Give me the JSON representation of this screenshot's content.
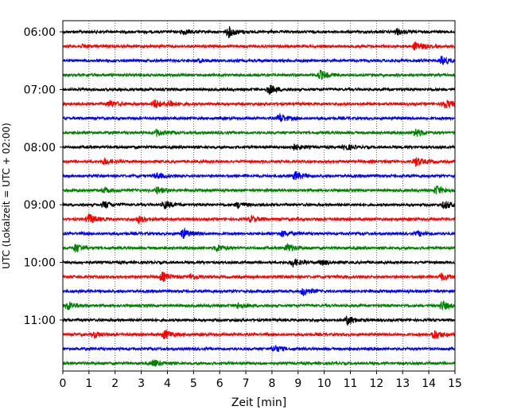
{
  "chart_data": {
    "type": "line",
    "title": "",
    "xlabel": "Zeit  [min]",
    "ylabel": "UTC (Lokalzeit = UTC + 02:00)",
    "xlim": [
      0,
      15
    ],
    "x_ticks": [
      0,
      1,
      2,
      3,
      4,
      5,
      6,
      7,
      8,
      9,
      10,
      11,
      12,
      13,
      14,
      15
    ],
    "grid": "vertical dotted lines at each minute",
    "traces_per_hour": 4,
    "minutes_per_trace": 15,
    "y_tick_labels": [
      "06:00",
      "07:00",
      "08:00",
      "09:00",
      "10:00",
      "11:00"
    ],
    "colors": [
      "#000000",
      "#ff0000",
      "#0000ff",
      "#008000"
    ],
    "series": [
      {
        "start": "06:00",
        "color": "#000000",
        "events": [
          {
            "t": 4.6,
            "a": 0.45
          },
          {
            "t": 6.35,
            "a": 0.9
          },
          {
            "t": 12.8,
            "a": 0.5
          }
        ]
      },
      {
        "start": "06:15",
        "color": "#ff0000",
        "events": [
          {
            "t": 0.8,
            "a": 0.3
          },
          {
            "t": 13.5,
            "a": 0.85
          }
        ]
      },
      {
        "start": "06:30",
        "color": "#0000ff",
        "events": [
          {
            "t": 5.2,
            "a": 0.25
          },
          {
            "t": 14.5,
            "a": 0.8
          }
        ]
      },
      {
        "start": "06:45",
        "color": "#008000",
        "events": [
          {
            "t": 9.85,
            "a": 0.8
          }
        ]
      },
      {
        "start": "07:00",
        "color": "#000000",
        "events": [
          {
            "t": 7.9,
            "a": 0.8
          }
        ]
      },
      {
        "start": "07:15",
        "color": "#ff0000",
        "events": [
          {
            "t": 1.8,
            "a": 0.6
          },
          {
            "t": 3.5,
            "a": 0.8
          },
          {
            "t": 4.1,
            "a": 0.5
          },
          {
            "t": 14.6,
            "a": 0.85
          }
        ]
      },
      {
        "start": "07:30",
        "color": "#0000ff",
        "events": [
          {
            "t": 8.3,
            "a": 0.8
          }
        ]
      },
      {
        "start": "07:45",
        "color": "#008000",
        "events": [
          {
            "t": 3.6,
            "a": 0.6
          },
          {
            "t": 13.5,
            "a": 0.7
          }
        ]
      },
      {
        "start": "08:00",
        "color": "#000000",
        "events": [
          {
            "t": 8.8,
            "a": 0.6
          },
          {
            "t": 10.8,
            "a": 0.5
          }
        ]
      },
      {
        "start": "08:15",
        "color": "#ff0000",
        "events": [
          {
            "t": 1.6,
            "a": 0.5
          },
          {
            "t": 13.5,
            "a": 0.8
          }
        ]
      },
      {
        "start": "08:30",
        "color": "#0000ff",
        "events": [
          {
            "t": 3.6,
            "a": 0.5
          },
          {
            "t": 8.9,
            "a": 0.8
          }
        ]
      },
      {
        "start": "08:45",
        "color": "#008000",
        "events": [
          {
            "t": 1.6,
            "a": 0.4
          },
          {
            "t": 3.6,
            "a": 0.6
          },
          {
            "t": 14.3,
            "a": 0.8
          }
        ]
      },
      {
        "start": "09:00",
        "color": "#000000",
        "events": [
          {
            "t": 1.6,
            "a": 0.6
          },
          {
            "t": 3.9,
            "a": 0.7
          },
          {
            "t": 6.7,
            "a": 0.5
          },
          {
            "t": 14.6,
            "a": 0.7
          }
        ]
      },
      {
        "start": "09:15",
        "color": "#ff0000",
        "events": [
          {
            "t": 1.0,
            "a": 0.9
          },
          {
            "t": 2.9,
            "a": 0.6
          },
          {
            "t": 7.2,
            "a": 0.5
          }
        ]
      },
      {
        "start": "09:30",
        "color": "#0000ff",
        "events": [
          {
            "t": 4.6,
            "a": 0.85
          },
          {
            "t": 8.4,
            "a": 0.5
          },
          {
            "t": 13.6,
            "a": 0.4
          }
        ]
      },
      {
        "start": "09:45",
        "color": "#008000",
        "events": [
          {
            "t": 0.5,
            "a": 0.8
          },
          {
            "t": 5.9,
            "a": 0.6
          },
          {
            "t": 8.6,
            "a": 0.7
          }
        ]
      },
      {
        "start": "10:00",
        "color": "#000000",
        "events": [
          {
            "t": 8.8,
            "a": 0.7
          },
          {
            "t": 9.9,
            "a": 0.45
          }
        ]
      },
      {
        "start": "10:15",
        "color": "#ff0000",
        "events": [
          {
            "t": 3.8,
            "a": 0.8
          },
          {
            "t": 4.9,
            "a": 0.5
          },
          {
            "t": 14.5,
            "a": 0.6
          }
        ]
      },
      {
        "start": "10:30",
        "color": "#0000ff",
        "events": [
          {
            "t": 9.2,
            "a": 0.7
          }
        ]
      },
      {
        "start": "10:45",
        "color": "#008000",
        "events": [
          {
            "t": 0.2,
            "a": 0.8
          },
          {
            "t": 6.7,
            "a": 0.5
          },
          {
            "t": 14.5,
            "a": 0.8
          }
        ]
      },
      {
        "start": "11:00",
        "color": "#000000",
        "events": [
          {
            "t": 10.9,
            "a": 0.8
          }
        ]
      },
      {
        "start": "11:15",
        "color": "#ff0000",
        "events": [
          {
            "t": 1.2,
            "a": 0.5
          },
          {
            "t": 3.9,
            "a": 0.85
          },
          {
            "t": 14.2,
            "a": 0.85
          }
        ]
      },
      {
        "start": "11:30",
        "color": "#0000ff",
        "events": [
          {
            "t": 8.1,
            "a": 0.6
          }
        ]
      },
      {
        "start": "11:45",
        "color": "#008000",
        "events": [
          {
            "t": 3.5,
            "a": 0.6
          }
        ]
      }
    ]
  }
}
